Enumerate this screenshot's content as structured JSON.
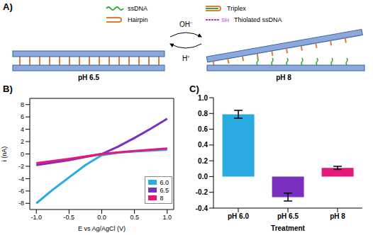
{
  "panel_a": {
    "letter": "A)",
    "legend": [
      {
        "label": "ssDNA"
      },
      {
        "label": "Hairpin"
      },
      {
        "label": "Triplex"
      },
      {
        "label": "Thiolated ssDNA",
        "tag": "SH"
      }
    ],
    "states": [
      "pH 6.5",
      "pH 8"
    ],
    "forward": "OH⁻",
    "backward": "H⁺"
  },
  "chart_data": [
    {
      "letter": "B)",
      "type": "line",
      "x_label": "E vs Ag/AgCl (V)",
      "y_label": "i (nA)",
      "x": [
        -1.0,
        -0.75,
        -0.5,
        -0.25,
        0.0,
        0.25,
        0.5,
        0.75,
        1.0
      ],
      "series": [
        {
          "name": "6.0",
          "color": "#29abe2",
          "values": [
            -8.0,
            -5.8,
            -3.8,
            -1.8,
            -0.2,
            0.2,
            0.4,
            0.55,
            0.7
          ]
        },
        {
          "name": "6.5",
          "color": "#7b2fbe",
          "values": [
            -1.8,
            -1.4,
            -1.0,
            -0.5,
            0.0,
            1.2,
            2.6,
            4.1,
            5.7
          ]
        },
        {
          "name": "8",
          "color": "#e6197a",
          "values": [
            -1.5,
            -1.15,
            -0.8,
            -0.4,
            0.0,
            0.25,
            0.5,
            0.7,
            0.9
          ]
        }
      ],
      "xlim": [
        -1.1,
        1.1
      ],
      "xticks": [
        {
          "value": -1.0,
          "label": "-1.0"
        },
        -0.5,
        {
          "value": 0.0,
          "label": "0.0"
        },
        0.5,
        {
          "value": 1.0,
          "label": "1.0"
        }
      ],
      "ylim": [
        -9,
        9
      ],
      "yticks": [
        -8,
        -6,
        -4,
        -2,
        0,
        2,
        4,
        6,
        8
      ],
      "legend": "lower right"
    },
    {
      "letter": "C)",
      "type": "bar",
      "x_label": "Treatment",
      "categories": [
        "pH 6.0",
        "pH 6.5",
        "pH 8"
      ],
      "values": [
        0.79,
        -0.26,
        0.11
      ],
      "errors": [
        0.05,
        0.05,
        0.02
      ],
      "colors": [
        "#29abe2",
        "#7b2fbe",
        "#e6197a"
      ],
      "ylim": [
        -0.4,
        1.0
      ],
      "yticks": [
        -0.4,
        -0.2,
        {
          "value": 0.0,
          "label": "0.0"
        },
        0.2,
        0.4,
        0.6,
        0.8,
        {
          "value": 1.0,
          "label": "1.0"
        }
      ]
    }
  ]
}
